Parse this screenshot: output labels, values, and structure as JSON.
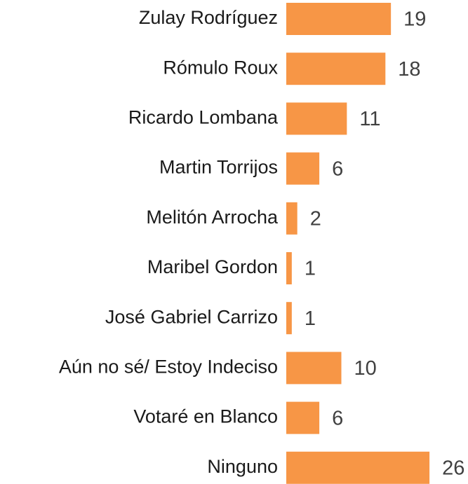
{
  "chart_data": {
    "type": "bar",
    "orientation": "horizontal",
    "categories": [
      "Zulay Rodríguez",
      "Rómulo Roux",
      "Ricardo Lombana",
      "Martin Torrijos",
      "Melitón Arrocha",
      "Maribel Gordon",
      "José Gabriel Carrizo",
      "Aún no sé/ Estoy Indeciso",
      "Votaré en Blanco",
      "Ninguno"
    ],
    "values": [
      19,
      18,
      11,
      6,
      2,
      1,
      1,
      10,
      6,
      26
    ],
    "color": "#f79646"
  }
}
